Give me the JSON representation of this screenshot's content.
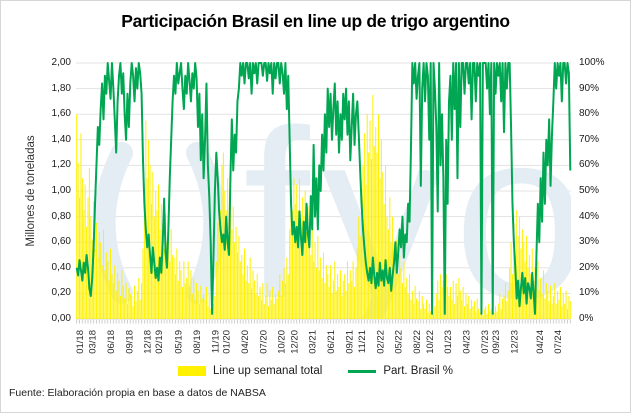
{
  "title": "Participación Brasil en line up de trigo argentino",
  "footer": {
    "source": "Fuente: Elaboración propia en base a datos de NABSA"
  },
  "watermark": {
    "text": "fyo",
    "color": "#e3edf3"
  },
  "colors": {
    "bar": "#FFF100",
    "line": "#00A651",
    "grid": "#e3e3e3",
    "axis_baseline": "#cfcfcf",
    "tickmarks": "#c8c8c8"
  },
  "legend": [
    {
      "label": "Line up semanal total",
      "type": "bar"
    },
    {
      "label": "Part. Brasil %",
      "type": "line"
    }
  ],
  "chart_data": {
    "type": "combo (weekly bars + line)",
    "title": "Participación Brasil en line up de trigo argentino",
    "frequency": "weekly",
    "x_start": "01/2018",
    "x_end": "09/2024",
    "left_axis": {
      "label": "Millones de toneladas",
      "min": 0,
      "max": 2.0,
      "ticks": [
        "2,00",
        "1,80",
        "1,60",
        "1,40",
        "1,20",
        "1,00",
        "0,80",
        "0,60",
        "0,40",
        "0,20",
        "0,00"
      ]
    },
    "right_axis": {
      "label": "Part. Brasil %",
      "min": 0,
      "max": 100,
      "ticks": [
        "100%",
        "90%",
        "80%",
        "70%",
        "60%",
        "50%",
        "40%",
        "30%",
        "20%",
        "10%",
        "0%"
      ]
    },
    "x_axis": {
      "ticks": [
        "01/18",
        "03/18",
        "06/18",
        "09/18",
        "12/18",
        "02/19",
        "05/19",
        "08/19",
        "11/19",
        "01/20",
        "04/20",
        "07/20",
        "10/20",
        "12/20",
        "03/21",
        "06/21",
        "09/21",
        "11/21",
        "02/22",
        "05/22",
        "08/22",
        "10/22",
        "01/23",
        "04/23",
        "07/23",
        "09/23",
        "12/23",
        "04/24",
        "07/24"
      ]
    },
    "series": [
      {
        "name": "Line up semanal total",
        "type": "bar",
        "axis": "left",
        "color": "#FFF100",
        "unit": "millones de toneladas",
        "values": [
          1.6,
          1.22,
          0.95,
          1.45,
          1.1,
          0.85,
          1.05,
          0.72,
          0.95,
          1.18,
          0.8,
          0.62,
          0.92,
          0.55,
          0.75,
          0.48,
          0.68,
          0.6,
          0.42,
          0.7,
          0.38,
          0.52,
          0.45,
          0.3,
          0.55,
          0.35,
          0.28,
          0.42,
          0.22,
          0.36,
          0.3,
          0.18,
          0.38,
          0.26,
          0.16,
          0.28,
          0.12,
          0.24,
          0.2,
          0.18,
          0.1,
          0.26,
          0.14,
          0.22,
          0.32,
          0.15,
          0.28,
          0.55,
          0.95,
          1.55,
          1.1,
          1.4,
          1.2,
          0.9,
          1.15,
          0.8,
          1.0,
          0.85,
          1.05,
          0.7,
          0.9,
          0.75,
          0.55,
          0.82,
          0.6,
          0.65,
          0.45,
          0.7,
          0.5,
          0.48,
          0.35,
          0.55,
          0.3,
          0.45,
          0.38,
          0.25,
          0.45,
          0.28,
          0.32,
          0.45,
          0.25,
          0.38,
          0.2,
          0.32,
          0.15,
          0.28,
          0.22,
          0.12,
          0.26,
          0.16,
          0.2,
          0.15,
          0.25,
          0.1,
          0.2,
          0.08,
          0.05,
          0.12,
          0.18,
          0.45,
          0.75,
          1.05,
          0.85,
          1.2,
          1.3,
          1.0,
          0.85,
          1.1,
          0.75,
          0.95,
          0.7,
          0.88,
          0.6,
          0.72,
          0.52,
          0.65,
          0.45,
          0.5,
          0.35,
          0.55,
          0.3,
          0.42,
          0.28,
          0.48,
          0.24,
          0.38,
          0.3,
          0.2,
          0.35,
          0.18,
          0.25,
          0.15,
          0.28,
          0.12,
          0.18,
          0.28,
          0.1,
          0.22,
          0.15,
          0.25,
          0.12,
          0.2,
          0.16,
          0.22,
          0.35,
          0.18,
          0.3,
          0.4,
          0.28,
          0.48,
          0.35,
          0.7,
          1.0,
          0.85,
          1.1,
          0.9,
          1.05,
          0.85,
          1.1,
          0.75,
          0.95,
          0.8,
          1.0,
          0.68,
          0.88,
          0.7,
          0.5,
          0.75,
          0.45,
          0.6,
          0.4,
          0.65,
          0.38,
          0.48,
          0.32,
          0.52,
          0.28,
          0.42,
          0.35,
          0.25,
          0.42,
          0.2,
          0.3,
          0.45,
          0.22,
          0.35,
          0.25,
          0.38,
          0.18,
          0.3,
          0.35,
          0.22,
          0.45,
          0.28,
          0.38,
          0.3,
          0.45,
          0.25,
          0.4,
          0.55,
          0.8,
          0.65,
          0.95,
          1.2,
          1.45,
          1.05,
          1.6,
          1.3,
          1.55,
          1.25,
          1.75,
          1.35,
          1.5,
          1.3,
          1.6,
          1.1,
          1.4,
          1.15,
          0.9,
          1.2,
          0.8,
          0.7,
          0.95,
          0.6,
          0.8,
          0.55,
          0.4,
          0.62,
          0.35,
          0.5,
          0.4,
          0.28,
          0.45,
          0.25,
          0.32,
          0.2,
          0.35,
          0.15,
          0.22,
          0.12,
          0.26,
          0.16,
          0.14,
          0.22,
          0.08,
          0.18,
          0.12,
          0.08,
          0.15,
          0.05,
          0.12,
          0.06,
          0.14,
          0.04,
          0.1,
          0.2,
          0.3,
          0.15,
          0.35,
          0.25,
          0.3,
          0.2,
          0.35,
          0.25,
          0.18,
          0.25,
          0.15,
          0.3,
          0.12,
          0.28,
          0.18,
          0.32,
          0.22,
          0.15,
          0.25,
          0.1,
          0.2,
          0.12,
          0.18,
          0.08,
          0.15,
          0.1,
          0.14,
          0.06,
          0.16,
          0.08,
          0.05,
          0.1,
          0.03,
          0.08,
          0.1,
          0.04,
          0.12,
          0.06,
          0.08,
          0.14,
          0.05,
          0.1,
          0.06,
          0.12,
          0.2,
          0.08,
          0.16,
          0.18,
          0.28,
          0.14,
          0.22,
          0.4,
          0.6,
          0.35,
          0.75,
          0.5,
          0.85,
          0.65,
          0.8,
          0.55,
          0.7,
          0.6,
          0.45,
          0.65,
          0.4,
          0.5,
          0.35,
          0.55,
          0.3,
          0.4,
          0.25,
          0.45,
          0.22,
          0.32,
          0.2,
          0.38,
          0.16,
          0.28,
          0.22,
          0.14,
          0.26,
          0.12,
          0.18,
          0.28,
          0.12,
          0.22,
          0.15,
          0.25,
          0.1,
          0.2,
          0.12,
          0.22,
          0.08,
          0.18,
          0.14
        ]
      },
      {
        "name": "Part. Brasil %",
        "type": "line",
        "axis": "right",
        "color": "#00A651",
        "unit": "%",
        "values": [
          20,
          17,
          23,
          19,
          15,
          22,
          18,
          25,
          20,
          12,
          9,
          16,
          28,
          45,
          60,
          75,
          68,
          82,
          92,
          78,
          95,
          88,
          100,
          93,
          86,
          100,
          90,
          78,
          65,
          85,
          95,
          100,
          88,
          96,
          80,
          70,
          88,
          75,
          92,
          100,
          95,
          85,
          98,
          90,
          100,
          96,
          88,
          62,
          45,
          35,
          28,
          33,
          25,
          18,
          28,
          22,
          16,
          20,
          15,
          24,
          18,
          30,
          47,
          26,
          20,
          35,
          55,
          70,
          85,
          95,
          88,
          100,
          92,
          96,
          100,
          90,
          82,
          95,
          88,
          100,
          93,
          85,
          96,
          90,
          100,
          94,
          75,
          88,
          62,
          80,
          55,
          70,
          92,
          60,
          48,
          30,
          2,
          25,
          50,
          65,
          55,
          42,
          35,
          30,
          33,
          27,
          40,
          30,
          25,
          55,
          78,
          58,
          72,
          65,
          85,
          90,
          100,
          95,
          100,
          92,
          100,
          100,
          94,
          100,
          88,
          100,
          96,
          100,
          92,
          100,
          100,
          100,
          95,
          100,
          100,
          93,
          100,
          96,
          100,
          88,
          100,
          94,
          100,
          100,
          92,
          100,
          96,
          88,
          100,
          82,
          95,
          70,
          45,
          33,
          38,
          30,
          36,
          28,
          42,
          32,
          25,
          38,
          30,
          45,
          33,
          28,
          48,
          35,
          68,
          40,
          55,
          35,
          60,
          50,
          72,
          58,
          80,
          65,
          90,
          75,
          88,
          70,
          82,
          92,
          72,
          85,
          65,
          80,
          70,
          88,
          78,
          90,
          72,
          85,
          62,
          75,
          88,
          68,
          80,
          85,
          72,
          58,
          45,
          35,
          28,
          22,
          18,
          15,
          20,
          14,
          24,
          17,
          12,
          18,
          13,
          22,
          15,
          19,
          13,
          23,
          16,
          14,
          20,
          11,
          17,
          22,
          30,
          18,
          26,
          35,
          28,
          40,
          24,
          33,
          30,
          45,
          38,
          66,
          100,
          92,
          100,
          86,
          95,
          100,
          52,
          90,
          100,
          85,
          100,
          95,
          70,
          100,
          2,
          100,
          90,
          75,
          42,
          100,
          60,
          80,
          55,
          2,
          70,
          45,
          85,
          95,
          70,
          100,
          82,
          100,
          55,
          100,
          75,
          100,
          100,
          88,
          100,
          100,
          92,
          100,
          78,
          100,
          100,
          85,
          100,
          95,
          100,
          2,
          100,
          100,
          100,
          90,
          100,
          80,
          100,
          2,
          100,
          88,
          100,
          95,
          100,
          85,
          100,
          73,
          100,
          90,
          100,
          100,
          75,
          45,
          30,
          20,
          8,
          15,
          5,
          12,
          18,
          10,
          16,
          6,
          14,
          12,
          8,
          18,
          10,
          2,
          25,
          45,
          30,
          55,
          38,
          65,
          45,
          70,
          60,
          78,
          52,
          72,
          85,
          100,
          90,
          100,
          95,
          100,
          85,
          100,
          100,
          92,
          100,
          96,
          58
        ]
      }
    ]
  }
}
